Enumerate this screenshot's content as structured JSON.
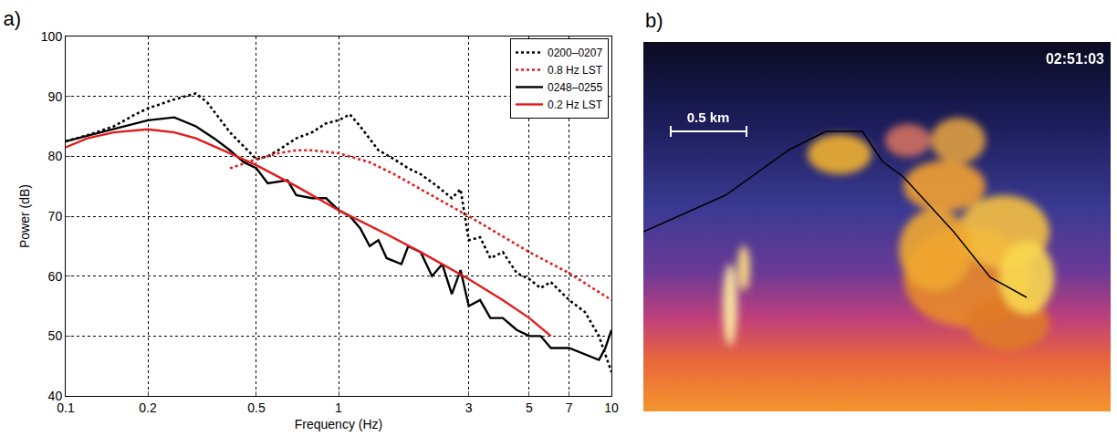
{
  "chart_data": {
    "type": "line",
    "title": "a)",
    "x_label": "Frequency (Hz)",
    "y_label": "Power (dB)",
    "log": "x",
    "grid": true,
    "legend": "top right",
    "xlim": [
      0.1,
      10
    ],
    "xticks": [
      0.1,
      0.2,
      0.5,
      1,
      3,
      5,
      7,
      10
    ],
    "ylim": [
      40,
      100
    ],
    "yticks": [
      40,
      50,
      60,
      70,
      80,
      90,
      100
    ],
    "series": [
      {
        "name": "0200–0207",
        "color": "#000000",
        "line_style": "dotted",
        "x": [
          0.1,
          0.12,
          0.15,
          0.18,
          0.2,
          0.25,
          0.3,
          0.33,
          0.4,
          0.5,
          0.55,
          0.6,
          0.7,
          0.8,
          0.9,
          1.0,
          1.1,
          1.2,
          1.4,
          1.6,
          1.8,
          2.0,
          2.3,
          2.6,
          2.8,
          3.0,
          3.3,
          3.6,
          4.0,
          4.5,
          5.0,
          5.5,
          6.0,
          7.0,
          8.0,
          9.0,
          10
        ],
        "values": [
          82.5,
          83.5,
          85,
          87,
          88,
          89.5,
          90.5,
          89,
          84,
          79.5,
          80,
          81,
          83,
          84,
          85.5,
          86,
          87,
          85,
          81,
          79.5,
          78,
          77,
          75,
          73,
          74.5,
          66,
          66.5,
          63,
          64,
          60.5,
          59.5,
          58,
          59,
          56,
          54,
          50,
          44
        ]
      },
      {
        "name": "0.8 Hz LST",
        "color": "#e41a1c",
        "line_style": "dotted",
        "x": [
          0.4,
          0.5,
          0.6,
          0.7,
          0.8,
          1.0,
          1.3,
          1.6,
          2.0,
          3.0,
          5.0,
          7.0,
          10
        ],
        "values": [
          78,
          79.5,
          80.5,
          81,
          81,
          80.5,
          79,
          77,
          74.5,
          70,
          64,
          60.5,
          56
        ]
      },
      {
        "name": "0248–0255",
        "color": "#000000",
        "line_style": "solid",
        "x": [
          0.1,
          0.15,
          0.2,
          0.25,
          0.3,
          0.35,
          0.4,
          0.45,
          0.5,
          0.55,
          0.65,
          0.7,
          0.8,
          0.9,
          1.0,
          1.1,
          1.2,
          1.3,
          1.4,
          1.5,
          1.7,
          1.8,
          2.0,
          2.2,
          2.4,
          2.6,
          2.8,
          3.0,
          3.3,
          3.6,
          4.0,
          4.5,
          5.0,
          5.5,
          6.0,
          7.0,
          8.0,
          9.0,
          9.5,
          10
        ],
        "values": [
          82.5,
          84.5,
          86,
          86.5,
          85,
          83,
          81,
          79,
          78,
          75.5,
          76,
          73.5,
          73,
          73,
          71,
          70,
          68,
          65,
          66,
          63,
          62,
          65,
          64,
          60,
          62,
          57,
          61,
          55,
          56,
          53,
          53,
          51,
          50,
          50,
          48,
          48,
          47,
          46,
          48,
          51
        ]
      },
      {
        "name": "0.2 Hz LST",
        "color": "#e41a1c",
        "line_style": "solid",
        "x": [
          0.1,
          0.12,
          0.15,
          0.2,
          0.25,
          0.3,
          0.4,
          0.5,
          0.7,
          1.0,
          1.5,
          2.0,
          3.0,
          4.0,
          5.0,
          6.0
        ],
        "values": [
          81.5,
          83,
          84,
          84.5,
          84,
          83,
          80.5,
          78.5,
          75,
          71,
          67,
          64,
          59.5,
          56,
          53,
          50
        ]
      }
    ]
  },
  "image_panel": {
    "label": "b)",
    "timestamp": "02:51:03",
    "scale_bar": "0.5 km"
  }
}
